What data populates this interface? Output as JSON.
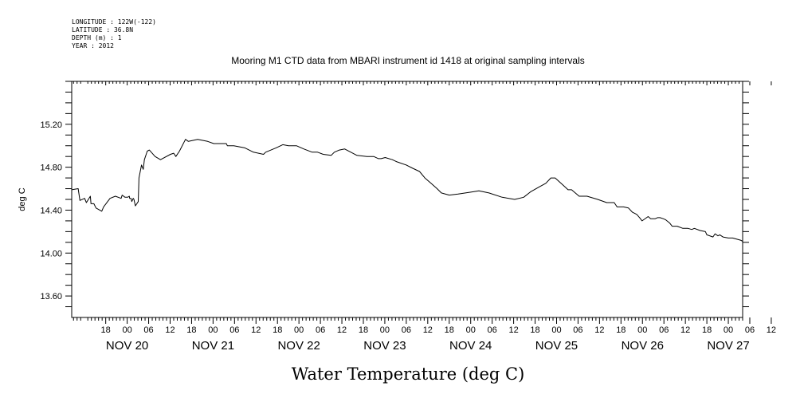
{
  "metadata": {
    "lines": [
      "LONGITUDE : 122W(-122)",
      "LATITUDE : 36.8N",
      "DEPTH (m) : 1",
      "YEAR : 2012"
    ]
  },
  "chart_data": {
    "type": "line",
    "title": "Mooring M1 CTD data from MBARI instrument id 1418 at original sampling intervals",
    "xlabel": "Water Temperature (deg C)",
    "ylabel": "deg C",
    "xunit": "hours since 2012-11-20 00:00",
    "xlim": [
      -15.5,
      172
    ],
    "ylim": [
      13.4,
      15.6
    ],
    "yticks": [
      13.6,
      14.0,
      14.4,
      14.8,
      15.2
    ],
    "yticklabels": [
      "13.60",
      "14.00",
      "14.40",
      "14.80",
      "15.20"
    ],
    "hour_ticks": [
      "18",
      "00",
      "06",
      "12",
      "18",
      "00",
      "06",
      "12",
      "18",
      "00",
      "06",
      "12",
      "18",
      "00",
      "06",
      "12",
      "18",
      "00",
      "06",
      "12",
      "18",
      "00",
      "06",
      "12",
      "18",
      "00",
      "06",
      "12",
      "18",
      "00",
      "06",
      "12"
    ],
    "day_ticks": [
      "NOV 20",
      "NOV 21",
      "NOV 22",
      "NOV 23",
      "NOV 24",
      "NOV 25",
      "NOV 26",
      "NOV 27"
    ],
    "grid": false,
    "series": [
      {
        "x": [
          -15.5,
          -13.7,
          -13.2,
          -11.9,
          -11.4,
          -10.3,
          -10.1,
          -9.3,
          -8.7,
          -7.1,
          -6.6,
          -4.8,
          -3.3,
          -1.7,
          -1.4,
          -0.6,
          0.1,
          0.6,
          0.7,
          1.1,
          1.3,
          1.7,
          1.9,
          2.3,
          3.1,
          3.3,
          4.0,
          4.5,
          4.8,
          5.6,
          6.2,
          7.8,
          9.3,
          12.1,
          13.0,
          13.6,
          14.6,
          16.3,
          17.1,
          19.7,
          21.1,
          22.5,
          24.2,
          25.4,
          26.9,
          27.7,
          28.0,
          29.8,
          32.9,
          35.3,
          38.1,
          38.7,
          41.6,
          43.5,
          45.1,
          47.3,
          49.4,
          51.7,
          53.2,
          54.8,
          57.0,
          57.9,
          59.3,
          60.8,
          62.5,
          64.2,
          67.0,
          68.9,
          70.2,
          71.0,
          72.1,
          74.1,
          75.4,
          78.0,
          79.8,
          81.7,
          83.2,
          84.9,
          86.6,
          87.8,
          90.0,
          92.5,
          96.4,
          98.3,
          101.1,
          104.8,
          108.3,
          110.8,
          112.7,
          115.3,
          117.0,
          118.4,
          119.6,
          121.6,
          123.2,
          124.2,
          126.3,
          128.5,
          131.5,
          134.0,
          136.1,
          136.9,
          138.7,
          140.1,
          141.2,
          142.4,
          143.2,
          143.9,
          145.6,
          146.3,
          147.1,
          147.6,
          148.2,
          148.9,
          149.8,
          150.5,
          151.6,
          152.3,
          153.7,
          155.3,
          156.7,
          157.8,
          158.5,
          160.1,
          161.6,
          162.0,
          163.7,
          164.3,
          165.1,
          165.6,
          166.5,
          168.0,
          169.2,
          171.4,
          172.0
        ],
        "y": [
          14.59,
          14.6,
          14.49,
          14.51,
          14.47,
          14.53,
          14.46,
          14.46,
          14.42,
          14.39,
          14.43,
          14.51,
          14.53,
          14.51,
          14.54,
          14.52,
          14.52,
          14.53,
          14.51,
          14.51,
          14.48,
          14.51,
          14.5,
          14.44,
          14.48,
          14.7,
          14.82,
          14.78,
          14.87,
          14.95,
          14.96,
          14.9,
          14.87,
          14.92,
          14.93,
          14.9,
          14.95,
          15.06,
          15.04,
          15.06,
          15.05,
          15.04,
          15.02,
          15.02,
          15.02,
          15.02,
          15.0,
          15.0,
          14.98,
          14.94,
          14.92,
          14.94,
          14.98,
          15.01,
          15.0,
          15.0,
          14.97,
          14.94,
          14.94,
          14.92,
          14.91,
          14.94,
          14.96,
          14.97,
          14.94,
          14.91,
          14.9,
          14.9,
          14.88,
          14.88,
          14.89,
          14.87,
          14.85,
          14.82,
          14.79,
          14.76,
          14.7,
          14.65,
          14.6,
          14.56,
          14.54,
          14.55,
          14.57,
          14.58,
          14.56,
          14.52,
          14.5,
          14.52,
          14.57,
          14.62,
          14.65,
          14.7,
          14.7,
          14.64,
          14.59,
          14.59,
          14.53,
          14.53,
          14.5,
          14.47,
          14.47,
          14.43,
          14.43,
          14.42,
          14.38,
          14.36,
          14.33,
          14.3,
          14.34,
          14.32,
          14.32,
          14.32,
          14.33,
          14.33,
          14.32,
          14.31,
          14.28,
          14.25,
          14.25,
          14.23,
          14.23,
          14.22,
          14.23,
          14.21,
          14.2,
          14.17,
          14.15,
          14.18,
          14.16,
          14.17,
          14.15,
          14.14,
          14.14,
          14.12,
          14.11
        ]
      }
    ]
  }
}
